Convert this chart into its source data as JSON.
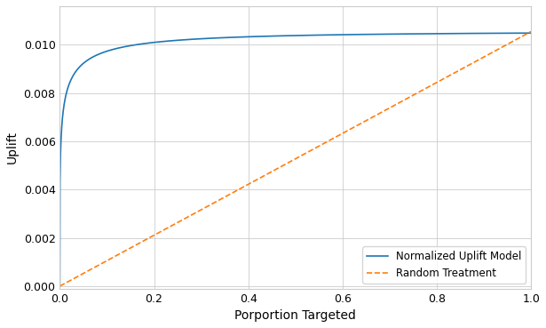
{
  "title": "",
  "xlabel": "Porportion Targeted",
  "ylabel": "Uplift",
  "xlim": [
    0.0,
    1.0
  ],
  "ylim": [
    -0.0001,
    0.0116
  ],
  "model_color": "#1f77b4",
  "random_color": "#ff7f0e",
  "legend_labels": [
    "Normalized Uplift Model",
    "Random Treatment"
  ],
  "grid": true,
  "max_uplift": 0.01055,
  "yticks": [
    0.0,
    0.002,
    0.004,
    0.006,
    0.008,
    0.01
  ],
  "xticks": [
    0.0,
    0.2,
    0.4,
    0.6,
    0.8,
    1.0
  ],
  "curve_alpha": 0.35,
  "curve_beta": 0.25
}
